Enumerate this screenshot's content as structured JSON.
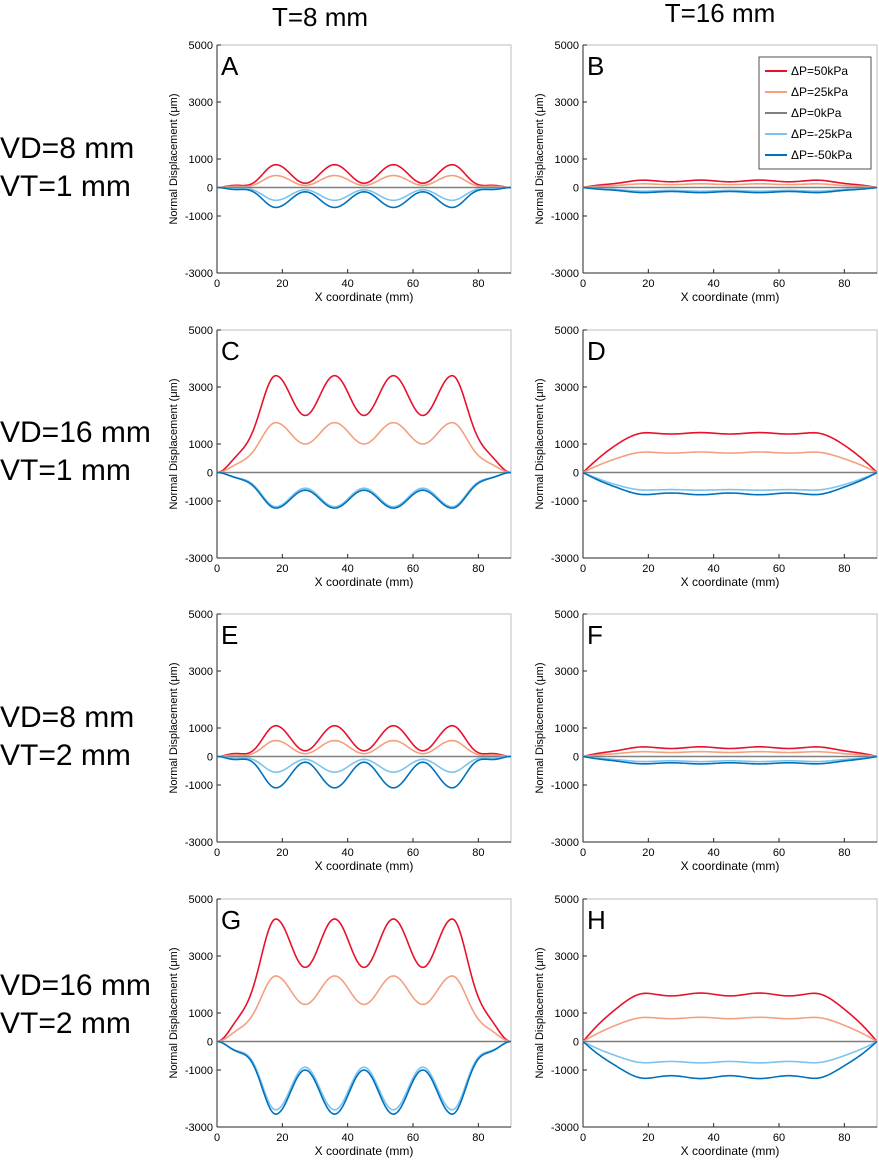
{
  "figure": {
    "column_headers": [
      "T=8 mm",
      "T=16 mm"
    ],
    "row_headers": [
      [
        "VD=8 mm",
        "VT=1 mm"
      ],
      [
        "VD=16 mm",
        "VT=1 mm"
      ],
      [
        "VD=8 mm",
        "VT=2 mm"
      ],
      [
        "VD=16 mm",
        "VT=2 mm"
      ]
    ],
    "legend": [
      "ΔP=50kPa",
      "ΔP=25kPa",
      "ΔP=0kPa",
      "ΔP=-25kPa",
      "ΔP=-50kPa"
    ]
  },
  "colors": {
    "dp_plus50": "#e8112d",
    "dp_plus25": "#f4a07e",
    "dp_0": "#7f7f7f",
    "dp_minus25": "#7cc4ec",
    "dp_minus50": "#0072bd",
    "axes": "#262626",
    "grid_box": "#bdbdbd"
  },
  "chart_data": [
    {
      "panel": "A",
      "type": "line",
      "xlabel": "X coordinate (mm)",
      "ylabel": "Normal Displacement (μm)",
      "xlim": [
        0,
        90
      ],
      "ylim": [
        -3000,
        5000
      ],
      "xticks": [
        0,
        20,
        40,
        60,
        80
      ],
      "yticks": [
        -3000,
        -1000,
        0,
        1000,
        3000,
        5000
      ],
      "shape": "bumps",
      "x": [
        0,
        9,
        18,
        27,
        36,
        45,
        54,
        63,
        72,
        81,
        90
      ],
      "series": [
        {
          "name": "ΔP=50kPa",
          "peak": 800,
          "valley": 150,
          "edge": 0
        },
        {
          "name": "ΔP=25kPa",
          "peak": 420,
          "valley": 75,
          "edge": 0
        },
        {
          "name": "ΔP=0kPa",
          "peak": 0,
          "valley": 0,
          "edge": 0
        },
        {
          "name": "ΔP=-25kPa",
          "peak": -450,
          "valley": -80,
          "edge": 0
        },
        {
          "name": "ΔP=-50kPa",
          "peak": -700,
          "valley": -150,
          "edge": 0
        }
      ]
    },
    {
      "panel": "B",
      "type": "line",
      "xlabel": "X coordinate (mm)",
      "ylabel": "Normal Displacement (μm)",
      "xlim": [
        0,
        90
      ],
      "ylim": [
        -3000,
        5000
      ],
      "xticks": [
        0,
        20,
        40,
        60,
        80
      ],
      "yticks": [
        -3000,
        -1000,
        0,
        1000,
        3000,
        5000
      ],
      "shape": "plateau",
      "x": [
        0,
        9,
        18,
        27,
        36,
        45,
        54,
        63,
        72,
        81,
        90
      ],
      "legend_position": "top-right",
      "series": [
        {
          "name": "ΔP=50kPa",
          "peak": 260,
          "valley": 200,
          "edge": 0
        },
        {
          "name": "ΔP=25kPa",
          "peak": 130,
          "valley": 100,
          "edge": 0
        },
        {
          "name": "ΔP=0kPa",
          "peak": 0,
          "valley": 0,
          "edge": 0
        },
        {
          "name": "ΔP=-25kPa",
          "peak": -130,
          "valley": -100,
          "edge": 0
        },
        {
          "name": "ΔP=-50kPa",
          "peak": -180,
          "valley": -140,
          "edge": 0
        }
      ]
    },
    {
      "panel": "C",
      "type": "line",
      "xlabel": "X coordinate (mm)",
      "ylabel": "Normal Displacement (μm)",
      "xlim": [
        0,
        90
      ],
      "ylim": [
        -3000,
        5000
      ],
      "xticks": [
        0,
        20,
        40,
        60,
        80
      ],
      "yticks": [
        -3000,
        -1000,
        0,
        1000,
        3000,
        5000
      ],
      "shape": "bumps",
      "x": [
        0,
        9,
        18,
        27,
        36,
        45,
        54,
        63,
        72,
        81,
        90
      ],
      "series": [
        {
          "name": "ΔP=50kPa",
          "peak": 3400,
          "valley": 2000,
          "edge": 0
        },
        {
          "name": "ΔP=25kPa",
          "peak": 1750,
          "valley": 1000,
          "edge": 0
        },
        {
          "name": "ΔP=0kPa",
          "peak": 0,
          "valley": 0,
          "edge": 0
        },
        {
          "name": "ΔP=-25kPa",
          "peak": -1200,
          "valley": -550,
          "edge": 0
        },
        {
          "name": "ΔP=-50kPa",
          "peak": -1250,
          "valley": -620,
          "edge": 0
        }
      ]
    },
    {
      "panel": "D",
      "type": "line",
      "xlabel": "X coordinate (mm)",
      "ylabel": "Normal Displacement (μm)",
      "xlim": [
        0,
        90
      ],
      "ylim": [
        -3000,
        5000
      ],
      "xticks": [
        0,
        20,
        40,
        60,
        80
      ],
      "yticks": [
        -3000,
        -1000,
        0,
        1000,
        3000,
        5000
      ],
      "shape": "plateau",
      "x": [
        0,
        9,
        18,
        27,
        36,
        45,
        54,
        63,
        72,
        81,
        90
      ],
      "series": [
        {
          "name": "ΔP=50kPa",
          "peak": 1400,
          "valley": 1350,
          "edge": 0
        },
        {
          "name": "ΔP=25kPa",
          "peak": 720,
          "valley": 680,
          "edge": 0
        },
        {
          "name": "ΔP=0kPa",
          "peak": 0,
          "valley": 0,
          "edge": 0
        },
        {
          "name": "ΔP=-25kPa",
          "peak": -620,
          "valley": -600,
          "edge": 0
        },
        {
          "name": "ΔP=-50kPa",
          "peak": -780,
          "valley": -720,
          "edge": 0
        }
      ]
    },
    {
      "panel": "E",
      "type": "line",
      "xlabel": "X coordinate (mm)",
      "ylabel": "Normal Displacement (μm)",
      "xlim": [
        0,
        90
      ],
      "ylim": [
        -3000,
        5000
      ],
      "xticks": [
        0,
        20,
        40,
        60,
        80
      ],
      "yticks": [
        -3000,
        -1000,
        0,
        1000,
        3000,
        5000
      ],
      "shape": "bumps",
      "x": [
        0,
        9,
        18,
        27,
        36,
        45,
        54,
        63,
        72,
        81,
        90
      ],
      "series": [
        {
          "name": "ΔP=50kPa",
          "peak": 1080,
          "valley": 200,
          "edge": 0
        },
        {
          "name": "ΔP=25kPa",
          "peak": 560,
          "valley": 100,
          "edge": 0
        },
        {
          "name": "ΔP=0kPa",
          "peak": 0,
          "valley": 0,
          "edge": 0
        },
        {
          "name": "ΔP=-25kPa",
          "peak": -550,
          "valley": -100,
          "edge": 0
        },
        {
          "name": "ΔP=-50kPa",
          "peak": -1100,
          "valley": -200,
          "edge": 0
        }
      ]
    },
    {
      "panel": "F",
      "type": "line",
      "xlabel": "X coordinate (mm)",
      "ylabel": "Normal Displacement (μm)",
      "xlim": [
        0,
        90
      ],
      "ylim": [
        -3000,
        5000
      ],
      "xticks": [
        0,
        20,
        40,
        60,
        80
      ],
      "yticks": [
        -3000,
        -1000,
        0,
        1000,
        3000,
        5000
      ],
      "shape": "plateau",
      "x": [
        0,
        9,
        18,
        27,
        36,
        45,
        54,
        63,
        72,
        81,
        90
      ],
      "series": [
        {
          "name": "ΔP=50kPa",
          "peak": 340,
          "valley": 280,
          "edge": 0
        },
        {
          "name": "ΔP=25kPa",
          "peak": 170,
          "valley": 140,
          "edge": 0
        },
        {
          "name": "ΔP=0kPa",
          "peak": 0,
          "valley": 0,
          "edge": 0
        },
        {
          "name": "ΔP=-25kPa",
          "peak": -180,
          "valley": -150,
          "edge": 0
        },
        {
          "name": "ΔP=-50kPa",
          "peak": -260,
          "valley": -220,
          "edge": 0
        }
      ]
    },
    {
      "panel": "G",
      "type": "line",
      "xlabel": "X coordinate (mm)",
      "ylabel": "Normal Displacement (μm)",
      "xlim": [
        0,
        90
      ],
      "ylim": [
        -3000,
        5000
      ],
      "xticks": [
        0,
        20,
        40,
        60,
        80
      ],
      "yticks": [
        -3000,
        -1000,
        0,
        1000,
        3000,
        5000
      ],
      "shape": "bumps",
      "x": [
        0,
        9,
        18,
        27,
        36,
        45,
        54,
        63,
        72,
        81,
        90
      ],
      "series": [
        {
          "name": "ΔP=50kPa",
          "peak": 4300,
          "valley": 2600,
          "edge": 0
        },
        {
          "name": "ΔP=25kPa",
          "peak": 2300,
          "valley": 1300,
          "edge": 0
        },
        {
          "name": "ΔP=0kPa",
          "peak": 0,
          "valley": 0,
          "edge": 0
        },
        {
          "name": "ΔP=-25kPa",
          "peak": -2400,
          "valley": -900,
          "edge": 0
        },
        {
          "name": "ΔP=-50kPa",
          "peak": -2550,
          "valley": -1000,
          "edge": 0
        }
      ]
    },
    {
      "panel": "H",
      "type": "line",
      "xlabel": "X coordinate (mm)",
      "ylabel": "Normal Displacement (μm)",
      "xlim": [
        0,
        90
      ],
      "ylim": [
        -3000,
        5000
      ],
      "xticks": [
        0,
        20,
        40,
        60,
        80
      ],
      "yticks": [
        -3000,
        -1000,
        0,
        1000,
        3000,
        5000
      ],
      "shape": "plateau",
      "x": [
        0,
        9,
        18,
        27,
        36,
        45,
        54,
        63,
        72,
        81,
        90
      ],
      "series": [
        {
          "name": "ΔP=50kPa",
          "peak": 1700,
          "valley": 1600,
          "edge": 0
        },
        {
          "name": "ΔP=25kPa",
          "peak": 850,
          "valley": 800,
          "edge": 0
        },
        {
          "name": "ΔP=0kPa",
          "peak": 0,
          "valley": 0,
          "edge": 0
        },
        {
          "name": "ΔP=-25kPa",
          "peak": -750,
          "valley": -700,
          "edge": 0
        },
        {
          "name": "ΔP=-50kPa",
          "peak": -1300,
          "valley": -1200,
          "edge": 0
        }
      ]
    }
  ]
}
